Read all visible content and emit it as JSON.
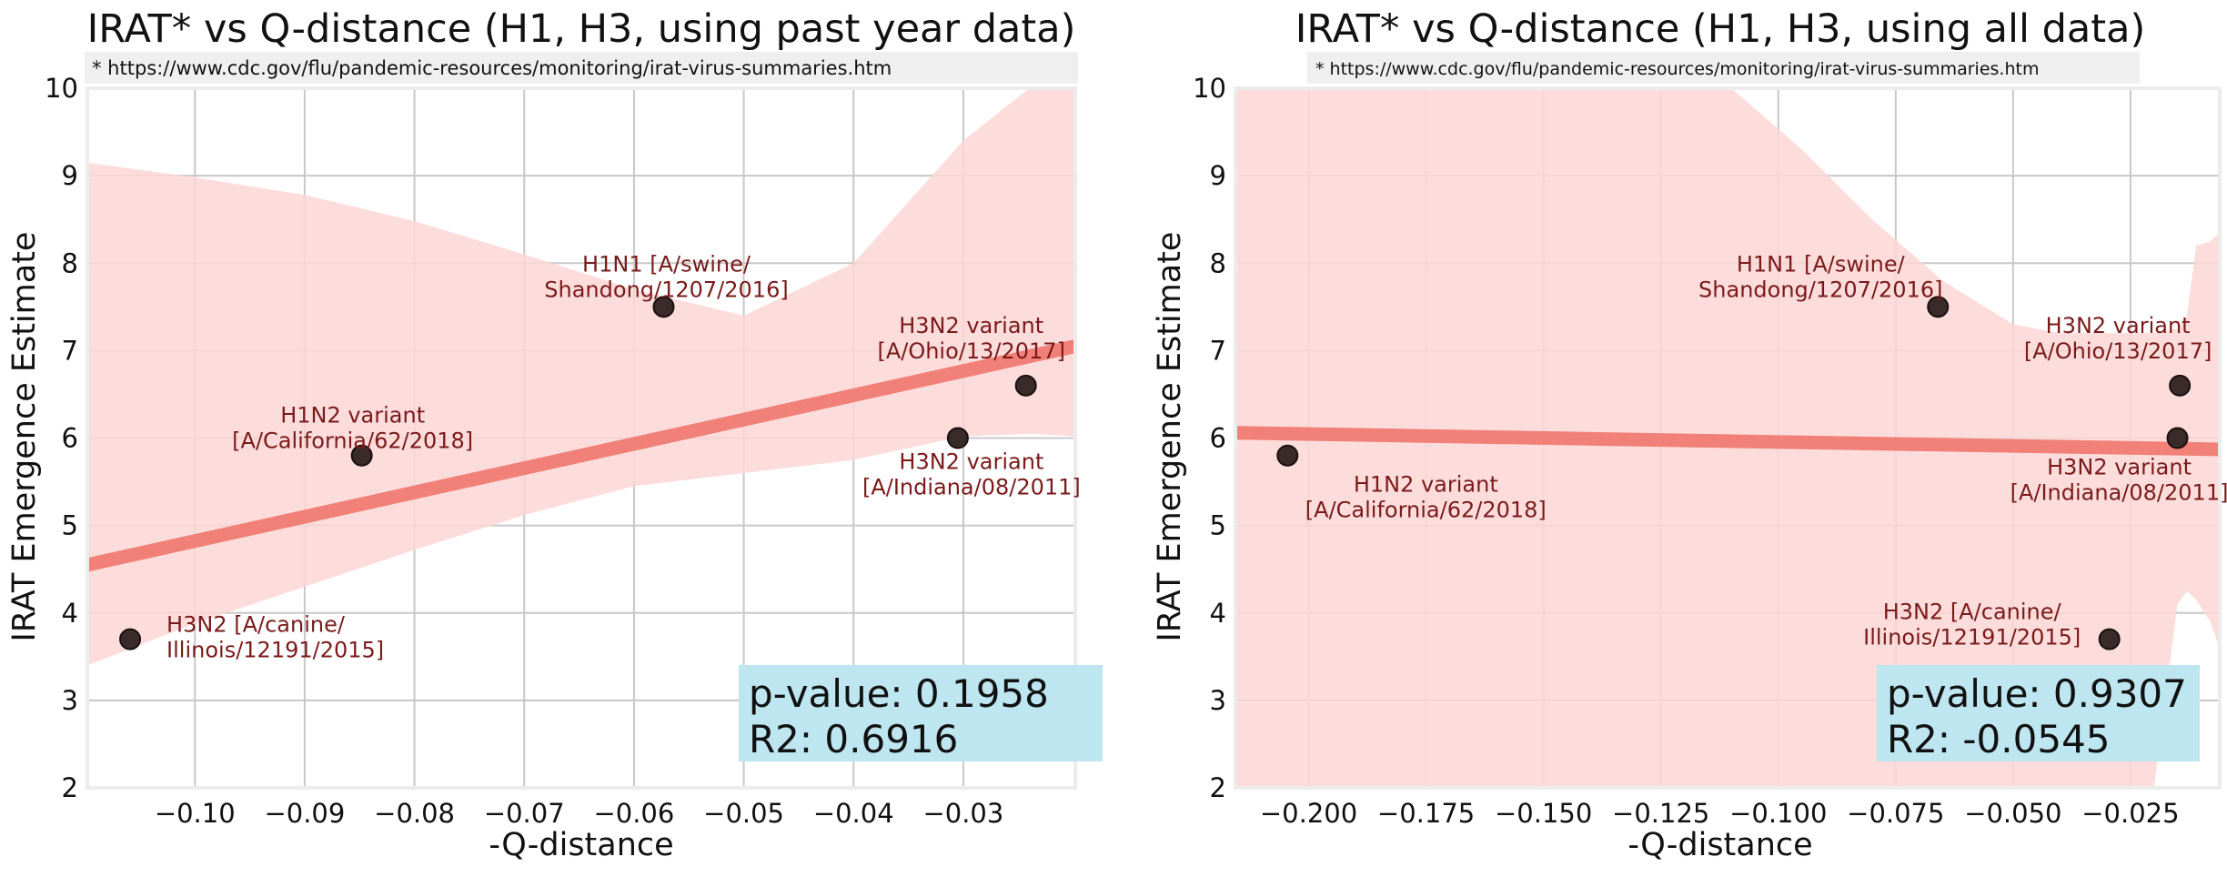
{
  "figure": {
    "colors": {
      "band": "#fbd7d5",
      "line": "#f08078",
      "point_fill": "#3a2a2a",
      "annotation_text": "#7a1a1a",
      "stats_box": "#bde6f0",
      "grid": "#c8c8c8",
      "frame": "#ececec",
      "url_bg": "#efefef"
    }
  },
  "chart_data": [
    {
      "type": "scatter",
      "title": "IRAT* vs Q-distance (H1, H3, using past year data)",
      "source_note": "* https://www.cdc.gov/flu/pandemic-resources/monitoring/irat-virus-summaries.htm",
      "xlabel": "-Q-distance",
      "ylabel": "IRAT Emergence Estimate",
      "xlim": [
        -0.1098,
        -0.0198
      ],
      "ylim": [
        2,
        10
      ],
      "xticks": [
        -0.1,
        -0.09,
        -0.08,
        -0.07,
        -0.06,
        -0.05,
        -0.04,
        -0.03
      ],
      "xtick_labels": [
        "−0.10",
        "−0.09",
        "−0.08",
        "−0.07",
        "−0.06",
        "−0.05",
        "−0.04",
        "−0.03"
      ],
      "yticks": [
        2,
        3,
        4,
        5,
        6,
        7,
        8,
        9,
        10
      ],
      "ytick_labels": [
        "2",
        "3",
        "4",
        "5",
        "6",
        "7",
        "8",
        "9",
        "10"
      ],
      "grid": true,
      "points": [
        {
          "x": -0.1059,
          "y": 3.7,
          "label_lines": [
            "H3N2 [A/canine/",
            "Illinois/12191/2015]"
          ]
        },
        {
          "x": -0.0848,
          "y": 5.8,
          "label_lines": [
            "H1N2 variant",
            "[A/California/62/2018]"
          ]
        },
        {
          "x": -0.0573,
          "y": 7.5,
          "label_lines": [
            "H1N1 [A/swine/",
            "Shandong/1207/2016]"
          ]
        },
        {
          "x": -0.0305,
          "y": 6.0,
          "label_lines": [
            "H3N2 variant",
            "[A/Indiana/08/2011]"
          ]
        },
        {
          "x": -0.0243,
          "y": 6.6,
          "label_lines": [
            "H3N2 variant",
            "[A/Ohio/13/2017]"
          ]
        }
      ],
      "regression": {
        "x": [
          -0.1098,
          -0.0198
        ],
        "y": [
          4.55,
          7.05
        ]
      },
      "confidence_band": {
        "x": [
          -0.1098,
          -0.1,
          -0.09,
          -0.08,
          -0.07,
          -0.06,
          -0.05,
          -0.04,
          -0.03,
          -0.024,
          -0.0198
        ],
        "upper": [
          9.15,
          8.98,
          8.78,
          8.48,
          8.1,
          7.7,
          7.4,
          8.0,
          9.4,
          10.0,
          10.0
        ],
        "lower": [
          3.4,
          3.88,
          4.3,
          4.72,
          5.12,
          5.45,
          5.6,
          5.75,
          6.02,
          6.05,
          6.02
        ]
      },
      "stats": {
        "p_value": "p-value: 0.1958",
        "r2": "R2: 0.6916"
      }
    },
    {
      "type": "scatter",
      "title": "IRAT* vs Q-distance (H1, H3, using all data)",
      "source_note": "* https://www.cdc.gov/flu/pandemic-resources/monitoring/irat-virus-summaries.htm",
      "xlabel": "-Q-distance",
      "ylabel": "IRAT Emergence Estimate",
      "xlim": [
        -0.2156,
        -0.006
      ],
      "ylim": [
        2,
        10
      ],
      "xticks": [
        -0.2,
        -0.175,
        -0.15,
        -0.125,
        -0.1,
        -0.075,
        -0.05,
        -0.025
      ],
      "xtick_labels": [
        "−0.200",
        "−0.175",
        "−0.150",
        "−0.125",
        "−0.100",
        "−0.075",
        "−0.050",
        "−0.025"
      ],
      "yticks": [
        2,
        3,
        4,
        5,
        6,
        7,
        8,
        9,
        10
      ],
      "ytick_labels": [
        "2",
        "3",
        "4",
        "5",
        "6",
        "7",
        "8",
        "9",
        "10"
      ],
      "grid": true,
      "points": [
        {
          "x": -0.2045,
          "y": 5.8,
          "label_lines": [
            "H1N2 variant",
            "[A/California/62/2018]"
          ]
        },
        {
          "x": -0.066,
          "y": 7.5,
          "label_lines": [
            "H1N1 [A/swine/",
            "Shandong/1207/2016]"
          ]
        },
        {
          "x": -0.0295,
          "y": 3.7,
          "label_lines": [
            "H3N2 [A/canine/",
            "Illinois/12191/2015]"
          ]
        },
        {
          "x": -0.015,
          "y": 6.0,
          "label_lines": [
            "H3N2 variant",
            "[A/Indiana/08/2011]"
          ]
        },
        {
          "x": -0.0145,
          "y": 6.6,
          "label_lines": [
            "H3N2 variant",
            "[A/Ohio/13/2017]"
          ]
        }
      ],
      "regression": {
        "x": [
          -0.2156,
          -0.006
        ],
        "y": [
          6.06,
          5.87
        ]
      },
      "confidence_band": {
        "x": [
          -0.2156,
          -0.2,
          -0.175,
          -0.15,
          -0.125,
          -0.11,
          -0.095,
          -0.08,
          -0.065,
          -0.05,
          -0.04,
          -0.032,
          -0.028,
          -0.02,
          -0.015,
          -0.013,
          -0.011,
          -0.008,
          -0.006
        ],
        "upper": [
          10.0,
          10.0,
          10.0,
          10.0,
          10.0,
          10.0,
          9.3,
          8.5,
          7.8,
          7.3,
          7.2,
          7.2,
          7.2,
          7.2,
          7.25,
          7.4,
          8.2,
          8.25,
          8.35
        ],
        "lower": [
          2.0,
          2.0,
          2.0,
          2.0,
          2.0,
          2.0,
          2.0,
          2.0,
          2.0,
          2.0,
          2.0,
          2.0,
          2.0,
          2.0,
          4.1,
          4.25,
          4.15,
          3.9,
          3.6
        ]
      },
      "stats": {
        "p_value": "p-value: 0.9307",
        "r2": "R2: -0.0545"
      }
    }
  ]
}
